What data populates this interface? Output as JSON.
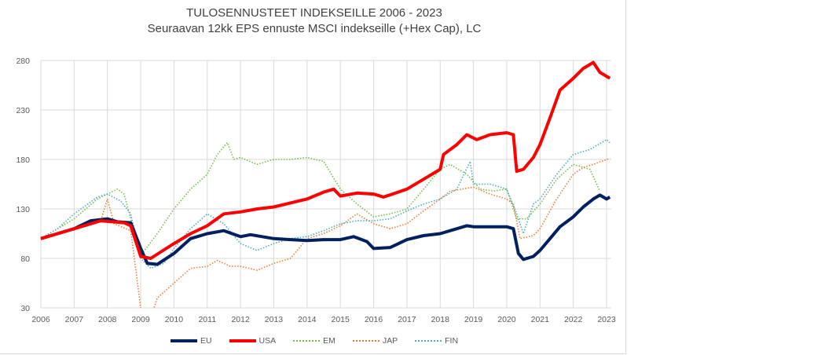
{
  "chart_data": {
    "type": "line",
    "title": "TULOSENNUSTEET INDEKSEILLE 2006 - 2023",
    "subtitle": "Seuraavan 12kk EPS ennuste MSCI indekseille (+Hex Cap), LC",
    "xlabel": "",
    "ylabel": "",
    "xlim": [
      2006,
      2023.15
    ],
    "ylim": [
      30,
      280
    ],
    "x_ticks": [
      "2006",
      "2007",
      "2008",
      "2009",
      "2010",
      "2011",
      "2012",
      "2013",
      "2014",
      "2015",
      "2016",
      "2017",
      "2018",
      "2019",
      "2020",
      "2021",
      "2022",
      "2023"
    ],
    "y_ticks": [
      "30",
      "80",
      "130",
      "180",
      "230",
      "280"
    ],
    "grid": true,
    "legend": "bottom",
    "series": [
      {
        "name": "EU",
        "color": "#002060",
        "style": "solid",
        "points": [
          [
            2006,
            100
          ],
          [
            2006.5,
            105
          ],
          [
            2007,
            110
          ],
          [
            2007.5,
            118
          ],
          [
            2008,
            120
          ],
          [
            2008.3,
            117
          ],
          [
            2008.7,
            116
          ],
          [
            2009,
            90
          ],
          [
            2009.2,
            75
          ],
          [
            2009.5,
            74
          ],
          [
            2010,
            85
          ],
          [
            2010.5,
            100
          ],
          [
            2011,
            105
          ],
          [
            2011.5,
            108
          ],
          [
            2012,
            102
          ],
          [
            2012.3,
            104
          ],
          [
            2013,
            100
          ],
          [
            2013.5,
            99
          ],
          [
            2014,
            98
          ],
          [
            2014.5,
            99
          ],
          [
            2015,
            99
          ],
          [
            2015.4,
            102
          ],
          [
            2015.8,
            97
          ],
          [
            2016,
            90
          ],
          [
            2016.5,
            91
          ],
          [
            2017,
            99
          ],
          [
            2017.5,
            103
          ],
          [
            2018,
            105
          ],
          [
            2018.5,
            110
          ],
          [
            2018.8,
            113
          ],
          [
            2019,
            112
          ],
          [
            2019.5,
            112
          ],
          [
            2020,
            112
          ],
          [
            2020.2,
            110
          ],
          [
            2020.35,
            85
          ],
          [
            2020.5,
            79
          ],
          [
            2020.8,
            82
          ],
          [
            2021,
            88
          ],
          [
            2021.3,
            100
          ],
          [
            2021.6,
            112
          ],
          [
            2022,
            122
          ],
          [
            2022.3,
            132
          ],
          [
            2022.6,
            140
          ],
          [
            2022.8,
            144
          ],
          [
            2023,
            140
          ],
          [
            2023.1,
            142
          ]
        ]
      },
      {
        "name": "USA",
        "color": "#ff0000",
        "style": "solid",
        "points": [
          [
            2006,
            100
          ],
          [
            2007,
            110
          ],
          [
            2007.8,
            118
          ],
          [
            2008.5,
            116
          ],
          [
            2008.7,
            113
          ],
          [
            2009,
            82
          ],
          [
            2009.3,
            80
          ],
          [
            2010,
            95
          ],
          [
            2010.5,
            105
          ],
          [
            2011,
            113
          ],
          [
            2011.5,
            125
          ],
          [
            2012,
            127
          ],
          [
            2012.5,
            130
          ],
          [
            2013,
            132
          ],
          [
            2013.5,
            136
          ],
          [
            2014,
            140
          ],
          [
            2014.5,
            147
          ],
          [
            2014.8,
            150
          ],
          [
            2015,
            143
          ],
          [
            2015.5,
            146
          ],
          [
            2016,
            145
          ],
          [
            2016.3,
            142
          ],
          [
            2017,
            150
          ],
          [
            2017.5,
            160
          ],
          [
            2018,
            170
          ],
          [
            2018.1,
            185
          ],
          [
            2018.5,
            195
          ],
          [
            2018.8,
            205
          ],
          [
            2019.1,
            200
          ],
          [
            2019.5,
            205
          ],
          [
            2020,
            207
          ],
          [
            2020.2,
            205
          ],
          [
            2020.3,
            168
          ],
          [
            2020.5,
            170
          ],
          [
            2020.8,
            182
          ],
          [
            2021,
            195
          ],
          [
            2021.3,
            222
          ],
          [
            2021.6,
            250
          ],
          [
            2022,
            262
          ],
          [
            2022.3,
            272
          ],
          [
            2022.6,
            278
          ],
          [
            2022.8,
            268
          ],
          [
            2023,
            264
          ],
          [
            2023.1,
            262
          ]
        ]
      },
      {
        "name": "EM",
        "color": "#70c040",
        "style": "dotted",
        "points": [
          [
            2006,
            100
          ],
          [
            2007,
            120
          ],
          [
            2007.7,
            140
          ],
          [
            2008.3,
            150
          ],
          [
            2008.5,
            145
          ],
          [
            2009,
            83
          ],
          [
            2009.5,
            105
          ],
          [
            2010,
            130
          ],
          [
            2010.5,
            150
          ],
          [
            2011,
            165
          ],
          [
            2011.3,
            185
          ],
          [
            2011.6,
            197
          ],
          [
            2011.8,
            180
          ],
          [
            2012,
            182
          ],
          [
            2012.5,
            175
          ],
          [
            2013,
            180
          ],
          [
            2013.5,
            180
          ],
          [
            2014,
            182
          ],
          [
            2014.5,
            178
          ],
          [
            2015,
            150
          ],
          [
            2015.5,
            135
          ],
          [
            2016,
            122
          ],
          [
            2016.5,
            125
          ],
          [
            2017,
            130
          ],
          [
            2017.5,
            150
          ],
          [
            2018,
            170
          ],
          [
            2018.3,
            175
          ],
          [
            2018.8,
            165
          ],
          [
            2019.2,
            150
          ],
          [
            2019.6,
            148
          ],
          [
            2020,
            150
          ],
          [
            2020.3,
            120
          ],
          [
            2020.6,
            120
          ],
          [
            2021,
            135
          ],
          [
            2021.5,
            160
          ],
          [
            2022,
            175
          ],
          [
            2022.5,
            170
          ],
          [
            2022.8,
            148
          ]
        ]
      },
      {
        "name": "JAP",
        "color": "#ed7d31",
        "style": "dotted",
        "points": [
          [
            2006,
            100
          ],
          [
            2007,
            110
          ],
          [
            2007.8,
            118
          ],
          [
            2008,
            140
          ],
          [
            2008.2,
            115
          ],
          [
            2008.7,
            108
          ],
          [
            2009,
            30
          ],
          [
            2009.2,
            20
          ],
          [
            2009.4,
            30
          ],
          [
            2009.5,
            40
          ],
          [
            2010,
            55
          ],
          [
            2010.5,
            70
          ],
          [
            2011,
            72
          ],
          [
            2011.3,
            78
          ],
          [
            2011.7,
            72
          ],
          [
            2012,
            72
          ],
          [
            2012.5,
            68
          ],
          [
            2013,
            75
          ],
          [
            2013.5,
            80
          ],
          [
            2014,
            100
          ],
          [
            2014.5,
            105
          ],
          [
            2015,
            113
          ],
          [
            2015.5,
            125
          ],
          [
            2016,
            115
          ],
          [
            2016.5,
            110
          ],
          [
            2017,
            115
          ],
          [
            2017.5,
            128
          ],
          [
            2018,
            140
          ],
          [
            2018.3,
            148
          ],
          [
            2019,
            152
          ],
          [
            2019.5,
            145
          ],
          [
            2020,
            140
          ],
          [
            2020.2,
            135
          ],
          [
            2020.4,
            100
          ],
          [
            2020.8,
            103
          ],
          [
            2021,
            110
          ],
          [
            2021.5,
            140
          ],
          [
            2022,
            165
          ],
          [
            2022.3,
            172
          ],
          [
            2022.6,
            175
          ],
          [
            2023,
            180
          ],
          [
            2023.1,
            181
          ]
        ]
      },
      {
        "name": "FIN",
        "color": "#4bacc6",
        "style": "dotted",
        "points": [
          [
            2006,
            100
          ],
          [
            2006.5,
            110
          ],
          [
            2007,
            125
          ],
          [
            2007.7,
            142
          ],
          [
            2008,
            145
          ],
          [
            2008.4,
            138
          ],
          [
            2008.7,
            125
          ],
          [
            2009,
            80
          ],
          [
            2009.3,
            70
          ],
          [
            2009.7,
            75
          ],
          [
            2010,
            90
          ],
          [
            2010.5,
            110
          ],
          [
            2011,
            125
          ],
          [
            2011.5,
            115
          ],
          [
            2012,
            95
          ],
          [
            2012.5,
            88
          ],
          [
            2013,
            95
          ],
          [
            2013.5,
            100
          ],
          [
            2014,
            102
          ],
          [
            2014.5,
            108
          ],
          [
            2015,
            115
          ],
          [
            2015.5,
            118
          ],
          [
            2016,
            118
          ],
          [
            2016.5,
            120
          ],
          [
            2017,
            128
          ],
          [
            2017.5,
            135
          ],
          [
            2018,
            140
          ],
          [
            2018.5,
            150
          ],
          [
            2018.9,
            178
          ],
          [
            2019,
            155
          ],
          [
            2019.5,
            155
          ],
          [
            2020,
            150
          ],
          [
            2020.3,
            125
          ],
          [
            2020.5,
            105
          ],
          [
            2020.8,
            135
          ],
          [
            2021,
            140
          ],
          [
            2021.5,
            165
          ],
          [
            2022,
            185
          ],
          [
            2022.5,
            190
          ],
          [
            2023,
            200
          ],
          [
            2023.1,
            197
          ]
        ]
      }
    ]
  }
}
